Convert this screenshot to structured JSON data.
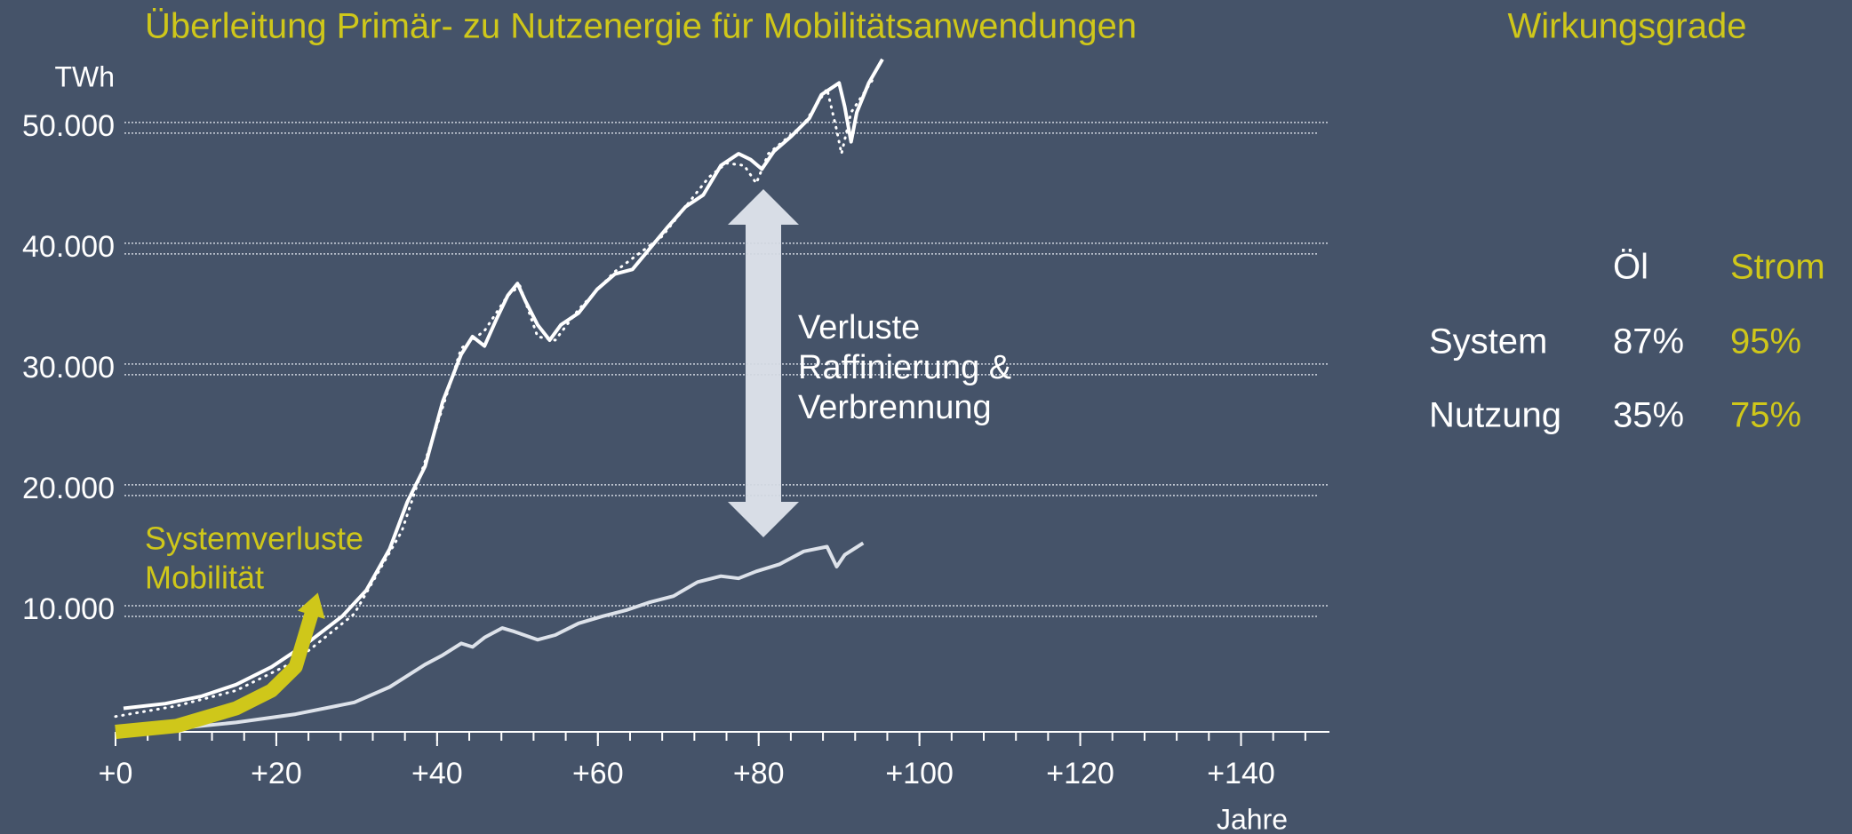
{
  "chart_data": {
    "type": "line",
    "title": "Überleitung Primär- zu Nutzenergie für Mobilitätsanwendungen",
    "y_unit": "TWh",
    "x_label": "Jahre",
    "xlim": [
      0,
      151
    ],
    "xticks": [
      {
        "value": 0,
        "label": "+0"
      },
      {
        "value": 20,
        "label": "+20"
      },
      {
        "value": 40,
        "label": "+40"
      },
      {
        "value": 60,
        "label": "+60"
      },
      {
        "value": 80,
        "label": "+80"
      },
      {
        "value": 100,
        "label": "+100"
      },
      {
        "value": 120,
        "label": "+120"
      },
      {
        "value": 140,
        "label": "+140"
      }
    ],
    "xminor": [
      0,
      4,
      8,
      12,
      16,
      20,
      24,
      28,
      32,
      36,
      40,
      44,
      48,
      52,
      56,
      60,
      64,
      68,
      72,
      76,
      80,
      84,
      88,
      92,
      96,
      100,
      104,
      108,
      112,
      116,
      120,
      124,
      128,
      132,
      136,
      140,
      144,
      148
    ],
    "ylim": [
      0,
      58000
    ],
    "yticks": [
      {
        "value": 10000,
        "label": "10.000"
      },
      {
        "value": 20000,
        "label": "20.000"
      },
      {
        "value": 30000,
        "label": "30.000"
      },
      {
        "value": 40000,
        "label": "40.000"
      },
      {
        "value": 50000,
        "label": "50.000"
      }
    ],
    "grid": true,
    "series": [
      {
        "color": "#ffffff",
        "style": "solid",
        "x": [
          1.0,
          6.2,
          10.6,
          15.0,
          19.4,
          23.8,
          28.2,
          31.2,
          34.1,
          36.3,
          38.5,
          40.7,
          43.0,
          44.4,
          45.9,
          47.4,
          48.8,
          50.0,
          51.0,
          52.5,
          54.0,
          55.4,
          57.6,
          59.9,
          62.1,
          64.3,
          66.5,
          68.7,
          70.9,
          73.1,
          75.3,
          77.5,
          79.0,
          80.4,
          81.9,
          84.1,
          86.3,
          87.8,
          90.0,
          90.7,
          91.5,
          92.2,
          93.7,
          95.4
        ],
        "values": [
          1950,
          2340,
          2930,
          3910,
          5370,
          7320,
          9570,
          11720,
          15140,
          19040,
          21970,
          27340,
          31250,
          32710,
          31930,
          34180,
          36130,
          37110,
          35640,
          33690,
          32420,
          33690,
          34670,
          36620,
          37890,
          38280,
          40040,
          41800,
          43460,
          44430,
          46880,
          47850,
          47360,
          46580,
          48050,
          49320,
          50780,
          52730,
          53710,
          51760,
          48830,
          51270,
          53710,
          55660
        ]
      },
      {
        "color": "#ffffff",
        "style": "dotted",
        "x": [
          0,
          7.6,
          15.0,
          22.4,
          29.7,
          35.6,
          40.0,
          43.0,
          45.9,
          48.8,
          50.3,
          52.5,
          54.7,
          57.6,
          62.1,
          68.0,
          73.8,
          76.0,
          78.2,
          79.7,
          81.2,
          85.6,
          88.5,
          89.7,
          90.3,
          91.5,
          94.4
        ],
        "values": [
          1270,
          2150,
          3420,
          5860,
          9770,
          16600,
          25390,
          31740,
          33200,
          36130,
          36910,
          32710,
          32420,
          34960,
          38090,
          41020,
          45900,
          47070,
          46880,
          45410,
          47850,
          50290,
          53220,
          49800,
          47850,
          51270,
          54200
        ]
      },
      {
        "color": "#dde2ea",
        "style": "solid",
        "x": [
          0,
          7.6,
          15.0,
          22.4,
          29.7,
          34.1,
          38.5,
          40.7,
          43.0,
          44.4,
          45.9,
          48.1,
          49.6,
          52.5,
          54.7,
          57.6,
          60.6,
          63.5,
          66.5,
          69.4,
          72.4,
          75.3,
          77.5,
          79.7,
          82.6,
          85.6,
          88.5,
          89.7,
          90.7,
          93.0
        ],
        "values": [
          0,
          290,
          780,
          1460,
          2440,
          3710,
          5570,
          6350,
          7320,
          7030,
          7810,
          8590,
          8300,
          7620,
          8010,
          8980,
          9570,
          10060,
          10740,
          11230,
          12400,
          12890,
          12700,
          13280,
          13870,
          14940,
          15330,
          13670,
          14650,
          15630
        ]
      },
      {
        "color": "#cfc71a",
        "style": "thick",
        "x": [
          0,
          7.6,
          15.0,
          19.4,
          22.4,
          24.6
        ],
        "values": [
          0,
          490,
          1950,
          3420,
          5370,
          10250
        ]
      }
    ],
    "annotations": [
      {
        "lines": [
          "Verluste",
          "Raffinierung &",
          "Verbrennung"
        ],
        "color": "#ffffff"
      },
      {
        "lines": [
          "Systemverluste",
          "Mobilität"
        ],
        "color": "#cfc71a"
      }
    ]
  },
  "side_table": {
    "title": "Wirkungsgrade",
    "columns": [
      "Öl",
      "Strom"
    ],
    "rows": [
      {
        "label": "System",
        "values": [
          "87%",
          "95%"
        ]
      },
      {
        "label": "Nutzung",
        "values": [
          "35%",
          "75%"
        ]
      }
    ]
  }
}
